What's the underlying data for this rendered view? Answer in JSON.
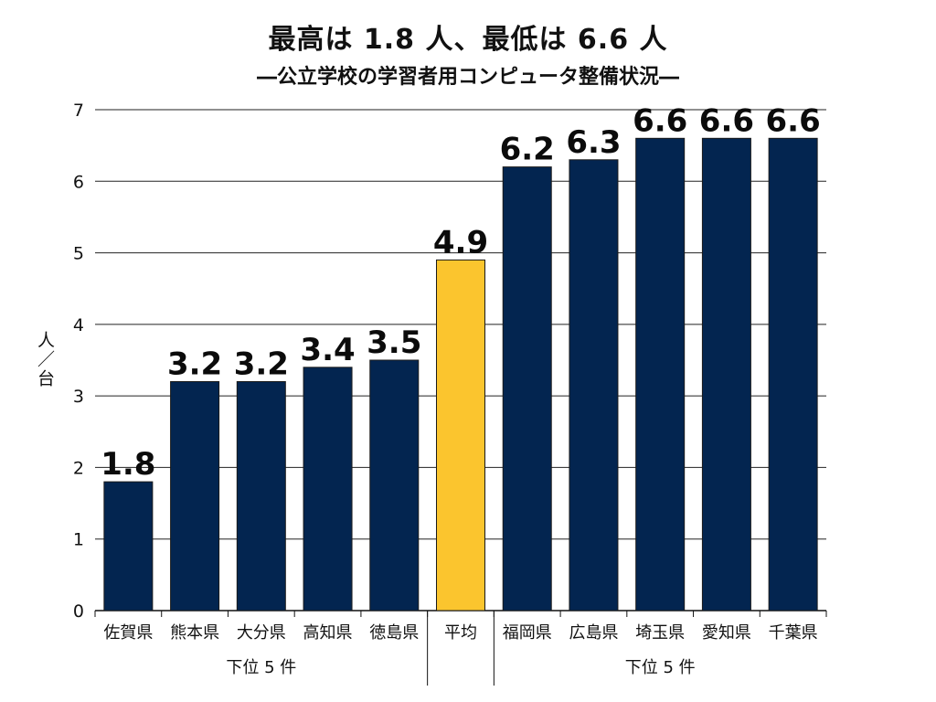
{
  "chart_data": {
    "type": "bar",
    "title": "最高は 1.8 人、最低は 6.6 人",
    "subtitle": "―公立学校の学習者用コンピュータ整備状況―",
    "ylabel": "人／台",
    "ylim": [
      0,
      7
    ],
    "yticks": [
      0,
      1,
      2,
      3,
      4,
      5,
      6,
      7
    ],
    "grid": true,
    "categories": [
      "佐賀県",
      "熊本県",
      "大分県",
      "高知県",
      "徳島県",
      "平均",
      "福岡県",
      "広島県",
      "埼玉県",
      "愛知県",
      "千葉県"
    ],
    "values": [
      1.8,
      3.2,
      3.2,
      3.4,
      3.5,
      4.9,
      6.2,
      6.3,
      6.6,
      6.6,
      6.6
    ],
    "value_labels": [
      "1.8",
      "3.2",
      "3.2",
      "3.4",
      "3.5",
      "4.9",
      "6.2",
      "6.3",
      "6.6",
      "6.6",
      "6.6"
    ],
    "group_labels": [
      "下位 5 件",
      "下位 5 件"
    ],
    "colors": {
      "bar": "#032550",
      "highlight": "#fbc52e",
      "grid": "#222222"
    },
    "highlight_index": 5
  }
}
